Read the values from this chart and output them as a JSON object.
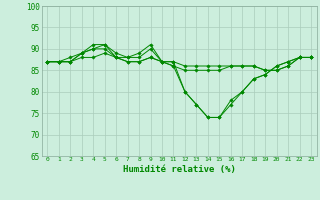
{
  "xlabel": "Humidité relative (%)",
  "background_color": "#cceedd",
  "grid_color": "#aaccbb",
  "line_color": "#008800",
  "ylim": [
    65,
    100
  ],
  "xlim": [
    -0.5,
    23.5
  ],
  "yticks": [
    65,
    70,
    75,
    80,
    85,
    90,
    95,
    100
  ],
  "xticks": [
    0,
    1,
    2,
    3,
    4,
    5,
    6,
    7,
    8,
    9,
    10,
    11,
    12,
    13,
    14,
    15,
    16,
    17,
    18,
    19,
    20,
    21,
    22,
    23
  ],
  "series": [
    [
      87,
      87,
      87,
      89,
      90,
      91,
      89,
      88,
      88,
      90,
      87,
      86,
      80,
      77,
      74,
      74,
      77,
      80,
      83,
      84,
      86,
      87,
      88,
      88
    ],
    [
      87,
      87,
      87,
      89,
      91,
      91,
      88,
      88,
      89,
      91,
      87,
      87,
      80,
      77,
      74,
      74,
      78,
      80,
      83,
      84,
      86,
      87,
      88,
      88
    ],
    [
      87,
      87,
      88,
      89,
      90,
      90,
      88,
      87,
      87,
      88,
      87,
      86,
      85,
      85,
      85,
      85,
      86,
      86,
      86,
      85,
      85,
      86,
      88,
      88
    ],
    [
      87,
      87,
      87,
      88,
      88,
      89,
      88,
      87,
      87,
      88,
      87,
      87,
      86,
      86,
      86,
      86,
      86,
      86,
      86,
      85,
      85,
      86,
      88,
      88
    ]
  ]
}
